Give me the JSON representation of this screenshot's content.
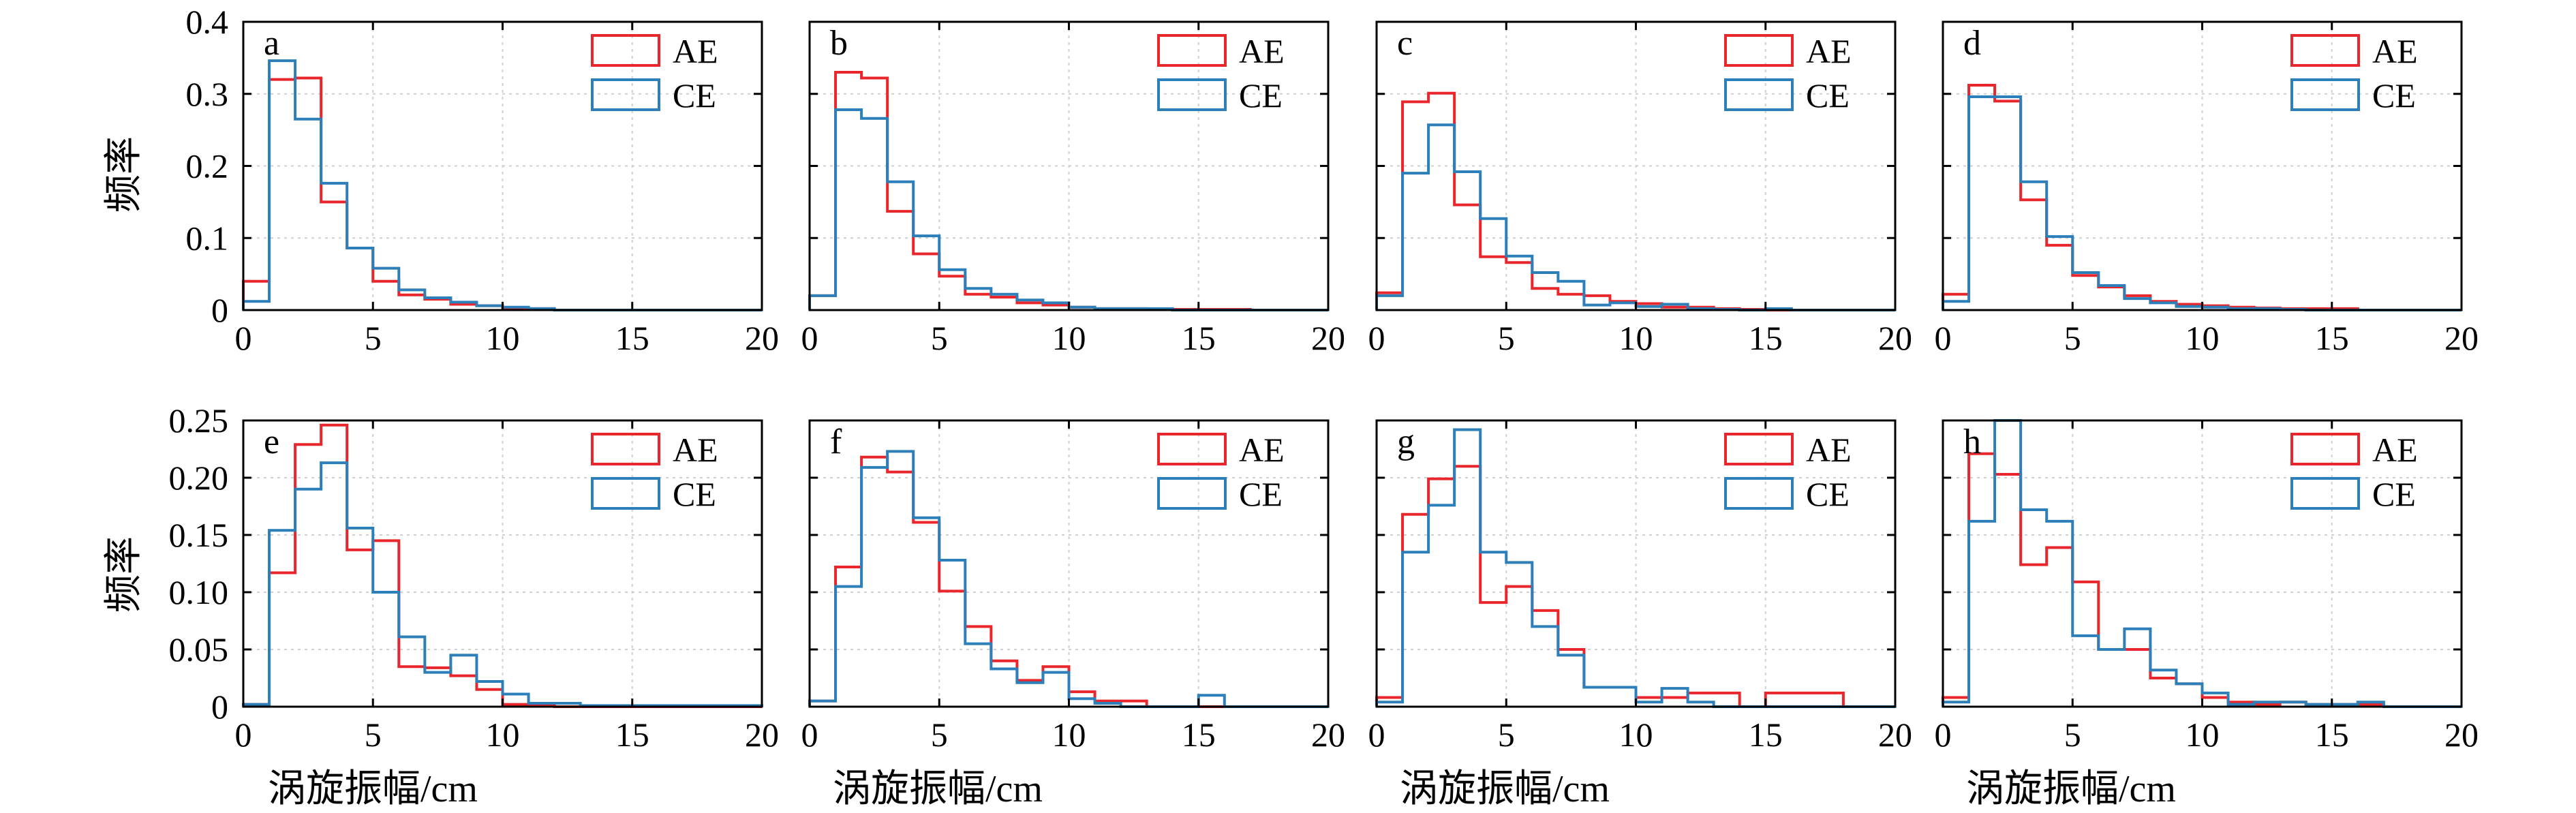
{
  "colors": {
    "AE": "#e8262b",
    "CE": "#2c7fb8"
  },
  "figure": {
    "ylabel": "频率",
    "xlabel": "涡旋振幅/cm"
  },
  "chart_data": [
    {
      "type": "histogram-step",
      "panel": "a",
      "xlim": [
        0,
        20
      ],
      "ylim": [
        0,
        0.4
      ],
      "xticks": [
        "0",
        "5",
        "10",
        "15",
        "20"
      ],
      "yticks": [
        "0",
        "0.1",
        "0.2",
        "0.3",
        "0.4"
      ],
      "legend": "top-right",
      "grid": true,
      "bin_edges": [
        0,
        1,
        2,
        3,
        4,
        5,
        6,
        7,
        8,
        9,
        10,
        11,
        12,
        13,
        14,
        15,
        16,
        17,
        18,
        19,
        20
      ],
      "series": [
        {
          "name": "AE",
          "values": [
            0.04,
            0.32,
            0.322,
            0.15,
            0.086,
            0.04,
            0.021,
            0.015,
            0.008,
            0.006,
            0.003,
            0.002,
            0,
            0,
            0,
            0,
            0,
            0,
            0,
            0
          ]
        },
        {
          "name": "CE",
          "values": [
            0.012,
            0.346,
            0.265,
            0.176,
            0.086,
            0.058,
            0.028,
            0.017,
            0.011,
            0.006,
            0.004,
            0.002,
            0,
            0,
            0,
            0,
            0,
            0,
            0,
            0
          ]
        }
      ]
    },
    {
      "type": "histogram-step",
      "panel": "b",
      "xlim": [
        0,
        20
      ],
      "ylim": [
        0,
        0.4
      ],
      "xticks": [
        "0",
        "5",
        "10",
        "15",
        "20"
      ],
      "yticks": [],
      "legend": "top-right",
      "grid": true,
      "bin_edges": [
        0,
        1,
        2,
        3,
        4,
        5,
        6,
        7,
        8,
        9,
        10,
        11,
        12,
        13,
        14,
        15,
        16,
        17,
        18,
        19,
        20
      ],
      "series": [
        {
          "name": "AE",
          "values": [
            0.02,
            0.33,
            0.322,
            0.137,
            0.078,
            0.047,
            0.022,
            0.018,
            0.01,
            0.007,
            0.004,
            0.002,
            0.002,
            0.001,
            0.001,
            0.001,
            0.001,
            0,
            0,
            0
          ]
        },
        {
          "name": "CE",
          "values": [
            0.02,
            0.278,
            0.266,
            0.178,
            0.103,
            0.056,
            0.03,
            0.022,
            0.014,
            0.01,
            0.004,
            0.002,
            0.002,
            0.002,
            0,
            0,
            0,
            0,
            0,
            0
          ]
        }
      ]
    },
    {
      "type": "histogram-step",
      "panel": "c",
      "xlim": [
        0,
        20
      ],
      "ylim": [
        0,
        0.4
      ],
      "xticks": [
        "0",
        "5",
        "10",
        "15",
        "20"
      ],
      "yticks": [],
      "legend": "top-right",
      "grid": true,
      "bin_edges": [
        0,
        1,
        2,
        3,
        4,
        5,
        6,
        7,
        8,
        9,
        10,
        11,
        12,
        13,
        14,
        15,
        16,
        17,
        18,
        19,
        20
      ],
      "series": [
        {
          "name": "AE",
          "values": [
            0.024,
            0.289,
            0.301,
            0.146,
            0.074,
            0.066,
            0.03,
            0.022,
            0.02,
            0.012,
            0.009,
            0.004,
            0.004,
            0.002,
            0.001,
            0,
            0,
            0,
            0,
            0
          ]
        },
        {
          "name": "CE",
          "values": [
            0.02,
            0.19,
            0.257,
            0.192,
            0.127,
            0.075,
            0.052,
            0.04,
            0.007,
            0.01,
            0.005,
            0.008,
            0.002,
            0.001,
            0,
            0.002,
            0,
            0,
            0,
            0
          ]
        }
      ]
    },
    {
      "type": "histogram-step",
      "panel": "d",
      "xlim": [
        0,
        20
      ],
      "ylim": [
        0,
        0.4
      ],
      "xticks": [
        "0",
        "5",
        "10",
        "15",
        "20"
      ],
      "yticks": [],
      "legend": "top-right",
      "grid": true,
      "bin_edges": [
        0,
        1,
        2,
        3,
        4,
        5,
        6,
        7,
        8,
        9,
        10,
        11,
        12,
        13,
        14,
        15,
        16,
        17,
        18,
        19,
        20
      ],
      "series": [
        {
          "name": "AE",
          "values": [
            0.022,
            0.312,
            0.29,
            0.153,
            0.09,
            0.048,
            0.032,
            0.02,
            0.012,
            0.008,
            0.006,
            0.004,
            0.003,
            0.002,
            0.002,
            0.002,
            0,
            0,
            0,
            0
          ]
        },
        {
          "name": "CE",
          "values": [
            0.012,
            0.296,
            0.296,
            0.178,
            0.102,
            0.052,
            0.034,
            0.016,
            0.01,
            0.005,
            0.004,
            0.002,
            0.002,
            0.001,
            0,
            0,
            0,
            0,
            0,
            0
          ]
        }
      ]
    },
    {
      "type": "histogram-step",
      "panel": "e",
      "xlim": [
        0,
        20
      ],
      "ylim": [
        0,
        0.25
      ],
      "xticks": [
        "0",
        "5",
        "10",
        "15",
        "20"
      ],
      "yticks": [
        "0",
        "0.05",
        "0.10",
        "0.15",
        "0.20",
        "0.25"
      ],
      "legend": "top-right",
      "grid": true,
      "bin_edges": [
        0,
        1,
        2,
        3,
        4,
        5,
        6,
        7,
        8,
        9,
        10,
        11,
        12,
        13,
        14,
        15,
        16,
        17,
        18,
        19,
        20
      ],
      "series": [
        {
          "name": "AE",
          "values": [
            0.002,
            0.117,
            0.229,
            0.246,
            0.137,
            0.145,
            0.035,
            0.034,
            0.027,
            0.015,
            0.002,
            0.001,
            0,
            0,
            0,
            0,
            0,
            0,
            0,
            0
          ]
        },
        {
          "name": "CE",
          "values": [
            0.002,
            0.154,
            0.19,
            0.213,
            0.156,
            0.1,
            0.061,
            0.03,
            0.045,
            0.022,
            0.011,
            0.003,
            0.003,
            0.001,
            0.001,
            0.001,
            0.001,
            0.001,
            0.001,
            0.001
          ]
        }
      ]
    },
    {
      "type": "histogram-step",
      "panel": "f",
      "xlim": [
        0,
        20
      ],
      "ylim": [
        0,
        0.25
      ],
      "xticks": [
        "0",
        "5",
        "10",
        "15",
        "20"
      ],
      "yticks": [],
      "legend": "top-right",
      "grid": true,
      "bin_edges": [
        0,
        1,
        2,
        3,
        4,
        5,
        6,
        7,
        8,
        9,
        10,
        11,
        12,
        13,
        14,
        15,
        16,
        17,
        18,
        19,
        20
      ],
      "series": [
        {
          "name": "AE",
          "values": [
            0.005,
            0.122,
            0.218,
            0.205,
            0.161,
            0.101,
            0.07,
            0.04,
            0.023,
            0.035,
            0.013,
            0.005,
            0.005,
            0,
            0,
            0,
            0,
            0,
            0,
            0
          ]
        },
        {
          "name": "CE",
          "values": [
            0.005,
            0.105,
            0.209,
            0.223,
            0.165,
            0.128,
            0.055,
            0.033,
            0.021,
            0.03,
            0.007,
            0.003,
            0,
            0,
            0,
            0.01,
            0,
            0,
            0,
            0
          ]
        }
      ]
    },
    {
      "type": "histogram-step",
      "panel": "g",
      "xlim": [
        0,
        20
      ],
      "ylim": [
        0,
        0.25
      ],
      "xticks": [
        "0",
        "5",
        "10",
        "15",
        "20"
      ],
      "yticks": [],
      "legend": "top-right",
      "grid": true,
      "bin_edges": [
        0,
        1,
        2,
        3,
        4,
        5,
        6,
        7,
        8,
        9,
        10,
        11,
        12,
        13,
        14,
        15,
        16,
        17,
        18,
        19,
        20
      ],
      "series": [
        {
          "name": "AE",
          "values": [
            0.008,
            0.168,
            0.199,
            0.21,
            0.091,
            0.105,
            0.084,
            0.05,
            0.017,
            0.017,
            0.008,
            0.008,
            0.012,
            0.012,
            0,
            0.012,
            0.012,
            0.012,
            0,
            0
          ]
        },
        {
          "name": "CE",
          "values": [
            0.004,
            0.135,
            0.176,
            0.242,
            0.135,
            0.126,
            0.07,
            0.045,
            0.017,
            0.017,
            0.004,
            0.016,
            0.004,
            0,
            0,
            0,
            0,
            0,
            0,
            0
          ]
        }
      ]
    },
    {
      "type": "histogram-step",
      "panel": "h",
      "xlim": [
        0,
        20
      ],
      "ylim": [
        0,
        0.25
      ],
      "xticks": [
        "0",
        "5",
        "10",
        "15",
        "20"
      ],
      "yticks": [],
      "legend": "top-right",
      "grid": true,
      "bin_edges": [
        0,
        1,
        2,
        3,
        4,
        5,
        6,
        7,
        8,
        9,
        10,
        11,
        12,
        13,
        14,
        15,
        16,
        17,
        18,
        19,
        20
      ],
      "series": [
        {
          "name": "AE",
          "values": [
            0.008,
            0.221,
            0.203,
            0.124,
            0.139,
            0.109,
            0.05,
            0.05,
            0.025,
            0.02,
            0.008,
            0.004,
            0.002,
            0.004,
            0.002,
            0.002,
            0.002,
            0,
            0,
            0
          ]
        },
        {
          "name": "CE",
          "values": [
            0.004,
            0.162,
            0.25,
            0.172,
            0.162,
            0.062,
            0.05,
            0.068,
            0.032,
            0.02,
            0.012,
            0.002,
            0.004,
            0.004,
            0.002,
            0.002,
            0.004,
            0,
            0,
            0
          ]
        }
      ]
    }
  ]
}
